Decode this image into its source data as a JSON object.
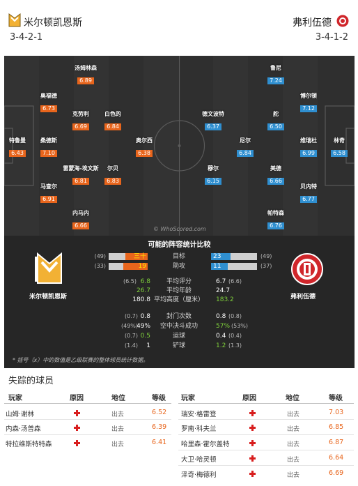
{
  "home_team": {
    "name": "米尔顿凯恩斯",
    "formation": "3-4-2-1"
  },
  "away_team": {
    "name": "弗利伍德",
    "formation": "3-4-1-2"
  },
  "home_players": [
    {
      "name": "汤姆林森",
      "rating": "6.89"
    },
    {
      "name": "奥福德",
      "rating": "6.73"
    },
    {
      "name": "克劳利",
      "rating": "6.69"
    },
    {
      "name": "白色的",
      "rating": "6.84"
    },
    {
      "name": "特鲁曼",
      "rating": "6.43"
    },
    {
      "name": "桑德斯",
      "rating": "7.10"
    },
    {
      "name": "奥尔西",
      "rating": "6.38"
    },
    {
      "name": "雷蒙海-埃文斯",
      "rating": "6.81"
    },
    {
      "name": "尔贝",
      "rating": "6.83"
    },
    {
      "name": "马查尔",
      "rating": "6.91"
    },
    {
      "name": "内马内",
      "rating": "6.66"
    }
  ],
  "away_players": [
    {
      "name": "鲁尼",
      "rating": "7.24"
    },
    {
      "name": "博尔顿",
      "rating": "7.12"
    },
    {
      "name": "德文波特",
      "rating": "6.37"
    },
    {
      "name": "舵",
      "rating": "6.50"
    },
    {
      "name": "林奇",
      "rating": "6.58"
    },
    {
      "name": "尼尔",
      "rating": "6.84"
    },
    {
      "name": "维瑞杜",
      "rating": "6.99"
    },
    {
      "name": "穆尔",
      "rating": "6.15"
    },
    {
      "name": "美德",
      "rating": "6.66"
    },
    {
      "name": "贝内特",
      "rating": "6.77"
    },
    {
      "name": "帕特森",
      "rating": "6.76"
    }
  ],
  "watermark": "© WhoScored.com",
  "comparison": {
    "title": "可能的阵容统计比较",
    "home_team": "米尔顿凯恩斯",
    "away_team": "弗利伍德",
    "goals": {
      "label": "目标",
      "home": "三十",
      "away": "23",
      "home_rank": "(49)",
      "away_rank": "(49)",
      "home_fraction": 0.57,
      "away_fraction": 0.43
    },
    "assists": {
      "label": "助攻",
      "home": "19",
      "away": "11",
      "home_rank": "(33)",
      "away_rank": "(37)",
      "home_fraction": 0.63,
      "away_fraction": 0.37
    },
    "avg_rating": {
      "label": "平均评分",
      "home": "6.8",
      "away": "6.7",
      "home_note": "(6.5)",
      "away_note": "(6.6)"
    },
    "avg_age": {
      "label": "平均年龄",
      "home": "26.7",
      "away": "24.7"
    },
    "avg_height": {
      "label": "平均高度（厘米）",
      "home": "180.8",
      "away": "183.2"
    },
    "shots_blocked": {
      "label": "封门次数",
      "home": "0.8",
      "away": "0.8",
      "home_note": "(0.7)",
      "away_note": "(0.8)"
    },
    "aerials": {
      "label": "空中决斗成功",
      "home": "49%",
      "away": "57%",
      "home_note": "(49%)",
      "away_note": "(53%)"
    },
    "dribbles": {
      "label": "运球",
      "home": "0.5",
      "away": "0.4",
      "home_note": "(0.7)",
      "away_note": "(0.4)"
    },
    "tackles": {
      "label": "铲球",
      "home": "1",
      "away": "1.2",
      "home_note": "(1.4)",
      "away_note": "(1.3)"
    },
    "footnote": "* 括号（x）中的数值是乙级联赛的整体球员统计数据。"
  },
  "missing": {
    "title": "失踪的球员",
    "headers": [
      "玩家",
      "原因",
      "地位",
      "等级"
    ],
    "home": [
      {
        "player": "山姆·谢林",
        "status": "出去",
        "rating": "6.52"
      },
      {
        "player": "内森·汤普森",
        "status": "出去",
        "rating": "6.39"
      },
      {
        "player": "特拉维斯特特森",
        "status": "出去",
        "rating": "6.41"
      }
    ],
    "away": [
      {
        "player": "瑞安·格雷登",
        "status": "出去",
        "rating": "7.03"
      },
      {
        "player": "罗南·科夫兰",
        "status": "出去",
        "rating": "6.85"
      },
      {
        "player": "哈里森·霍尔盖特",
        "status": "出去",
        "rating": "6.87"
      },
      {
        "player": "大卫·哈灵顿",
        "status": "出去",
        "rating": "6.64"
      },
      {
        "player": "泽奇·梅德利",
        "status": "出去",
        "rating": "6.69"
      }
    ]
  }
}
